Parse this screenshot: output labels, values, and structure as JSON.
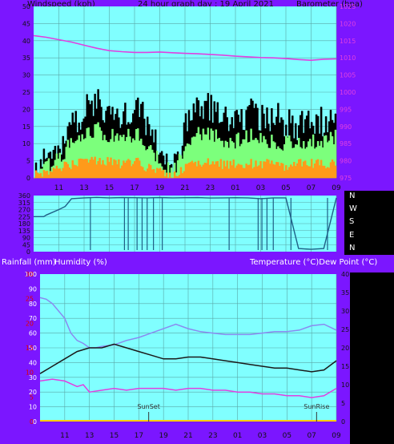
{
  "header": {
    "left": "Windspeed (kph)",
    "center": "24 hour graph day : 19 April 2021",
    "right": "Barometer (hpa)"
  },
  "middle_header": {
    "left1": "Rainfall (mm)",
    "left2": "Humidity (%)",
    "right": "Temperature (°C)Dew Point (°C)"
  },
  "compass": [
    "N",
    "W",
    "S",
    "E",
    "N"
  ],
  "annotations": {
    "sunset": "SunSet",
    "sunrise": "SunRise"
  },
  "colors": {
    "frame": "#7b16ff",
    "plot_bg": "#80ffff",
    "grid": "#5aa7a7",
    "gust": "#000000",
    "wind_avg": "#7cff7c",
    "wind_low": "#ff9a1a",
    "pressure": "#e040e0",
    "direction": "#1f5f86",
    "humidity": "#8a8af0",
    "temperature": "#1a1a1a",
    "dewpoint": "#e040e0",
    "rain_axis": "#e00000"
  },
  "chart_data": [
    {
      "type": "line",
      "title": "24 hour graph day : 19 April 2021",
      "x_ticks": [
        "11",
        "13",
        "15",
        "17",
        "19",
        "21",
        "23",
        "01",
        "03",
        "05",
        "07",
        "09"
      ],
      "left_axis": {
        "label": "Windspeed (kph)",
        "ticks": [
          0,
          5,
          10,
          15,
          20,
          25,
          30,
          35,
          40,
          45,
          50
        ],
        "ylim": [
          0,
          50
        ]
      },
      "right_axis": {
        "label": "Barometer (hpa)",
        "ticks": [
          975,
          980,
          985,
          990,
          995,
          1000,
          1005,
          1010,
          1015,
          1020,
          1025
        ],
        "ylim": [
          975,
          1025
        ]
      },
      "series": [
        {
          "axis": "right",
          "x": [
            9,
            10,
            11,
            12,
            13,
            14,
            15,
            16,
            17,
            18,
            19,
            20,
            21,
            22,
            23,
            24,
            25,
            26,
            27,
            28,
            29,
            30,
            31,
            32,
            33
          ],
          "values": [
            1016.5,
            1016,
            1015.3,
            1014.6,
            1013.7,
            1012.8,
            1012.1,
            1011.8,
            1011.6,
            1011.6,
            1011.7,
            1011.5,
            1011.3,
            1011.2,
            1011.0,
            1010.8,
            1010.5,
            1010.3,
            1010.1,
            1010.0,
            1009.8,
            1009.5,
            1009.3,
            1009.6,
            1009.7
          ]
        },
        {
          "x": [
            9,
            10,
            11,
            12,
            13,
            14,
            15,
            16,
            17,
            18,
            19,
            20,
            21,
            22,
            23,
            24,
            25,
            26,
            27,
            28,
            29,
            30,
            31,
            32,
            33
          ],
          "values": [
            3,
            5,
            9,
            15,
            20,
            22,
            19,
            17,
            21,
            16,
            8,
            1,
            15,
            22,
            20,
            18,
            17,
            19,
            17,
            18,
            16,
            15,
            17,
            16,
            22
          ]
        },
        {
          "x": [
            9,
            10,
            11,
            12,
            13,
            14,
            15,
            16,
            17,
            18,
            19,
            20,
            21,
            22,
            23,
            24,
            25,
            26,
            27,
            28,
            29,
            30,
            31,
            32,
            33
          ],
          "values": [
            2,
            3,
            6,
            10,
            13,
            14,
            12,
            11,
            13,
            10,
            5,
            1,
            9,
            13,
            12,
            11,
            11,
            12,
            11,
            11,
            10,
            10,
            11,
            10,
            13
          ]
        },
        {
          "x": [
            9,
            10,
            11,
            12,
            13,
            14,
            15,
            16,
            17,
            18,
            19,
            20,
            21,
            22,
            23,
            24,
            25,
            26,
            27,
            28,
            29,
            30,
            31,
            32,
            33
          ],
          "values": [
            1,
            2,
            3,
            4,
            5,
            5,
            5,
            4,
            5,
            3,
            2,
            0,
            3,
            5,
            4,
            4,
            4,
            4,
            4,
            4,
            3,
            4,
            4,
            4,
            5
          ]
        }
      ]
    },
    {
      "type": "line",
      "left_axis": {
        "ticks": [
          0,
          45,
          90,
          135,
          180,
          225,
          270,
          315,
          360
        ],
        "ylim": [
          0,
          360
        ]
      },
      "right_axis": {
        "ticks": [
          "N",
          "W",
          "S",
          "E",
          "N"
        ]
      },
      "series": [
        {
          "x": [
            9,
            9.8,
            10,
            11,
            11.5,
            12,
            13,
            14,
            15,
            16,
            17,
            18,
            19,
            20,
            21,
            22,
            23,
            24,
            25,
            26,
            27,
            28,
            29,
            30,
            31,
            32,
            33
          ],
          "values": [
            225,
            225,
            235,
            270,
            290,
            340,
            345,
            348,
            345,
            347,
            346,
            345,
            347,
            345,
            346,
            347,
            344,
            345,
            346,
            345,
            340,
            345,
            345,
            20,
            15,
            20,
            345
          ]
        }
      ]
    },
    {
      "type": "line",
      "x_ticks": [
        "11",
        "13",
        "15",
        "17",
        "19",
        "21",
        "23",
        "01",
        "03",
        "05",
        "07",
        "09"
      ],
      "left_axis": {
        "label": "Humidity (%)",
        "ticks": [
          0,
          10,
          20,
          30,
          40,
          50,
          60,
          70,
          80,
          90,
          100
        ],
        "ylim": [
          0,
          100
        ]
      },
      "rain_axis": {
        "label": "Rainfall (mm)",
        "ticks": [
          0,
          5,
          10,
          15,
          20,
          25,
          30
        ],
        "ylim": [
          0,
          30
        ]
      },
      "right_axis": {
        "label": "Temperature (°C)Dew Point (°C)",
        "ticks": [
          0,
          5,
          10,
          15,
          20,
          25,
          30,
          35,
          40
        ],
        "ylim": [
          0,
          40
        ]
      },
      "series": [
        {
          "axis": "left",
          "x": [
            9,
            9.5,
            10,
            11,
            11.5,
            12,
            12.5,
            13,
            13.5,
            14,
            15,
            16,
            17,
            18,
            19,
            20,
            21,
            22,
            23,
            24,
            25,
            26,
            27,
            28,
            29,
            30,
            31,
            32,
            33
          ],
          "values": [
            84,
            83,
            80,
            70,
            60,
            55,
            53,
            50,
            50,
            51,
            52,
            55,
            57,
            60,
            63,
            66,
            63,
            61,
            60,
            59,
            59,
            59,
            60,
            61,
            61,
            62,
            65,
            66,
            62
          ]
        },
        {
          "axis": "right",
          "x": [
            9,
            10,
            11,
            12,
            13,
            14,
            15,
            16,
            17,
            18,
            19,
            20,
            21,
            22,
            23,
            24,
            25,
            26,
            27,
            28,
            29,
            30,
            31,
            32,
            33
          ],
          "values": [
            13,
            15,
            17,
            19,
            20,
            20,
            21,
            20,
            19,
            18,
            17,
            17,
            17.5,
            17.5,
            17,
            16.5,
            16,
            15.5,
            15,
            14.5,
            14.5,
            14,
            13.5,
            14,
            16.5
          ]
        },
        {
          "axis": "right",
          "x": [
            9,
            10,
            11,
            12,
            12.5,
            13,
            14,
            15,
            16,
            17,
            18,
            19,
            20,
            21,
            22,
            23,
            24,
            25,
            26,
            27,
            28,
            29,
            30,
            31,
            32,
            33
          ],
          "values": [
            11,
            11.5,
            11,
            9.5,
            10,
            8,
            8.5,
            9,
            8.5,
            9,
            9,
            9,
            8.5,
            9,
            9,
            8.5,
            8.5,
            8,
            8,
            7.5,
            7.5,
            7,
            7,
            6.5,
            7,
            9
          ]
        }
      ],
      "annotations": [
        {
          "x": 17.8,
          "text": "SunSet"
        },
        {
          "x": 31.4,
          "text": "SunRise"
        }
      ]
    }
  ]
}
